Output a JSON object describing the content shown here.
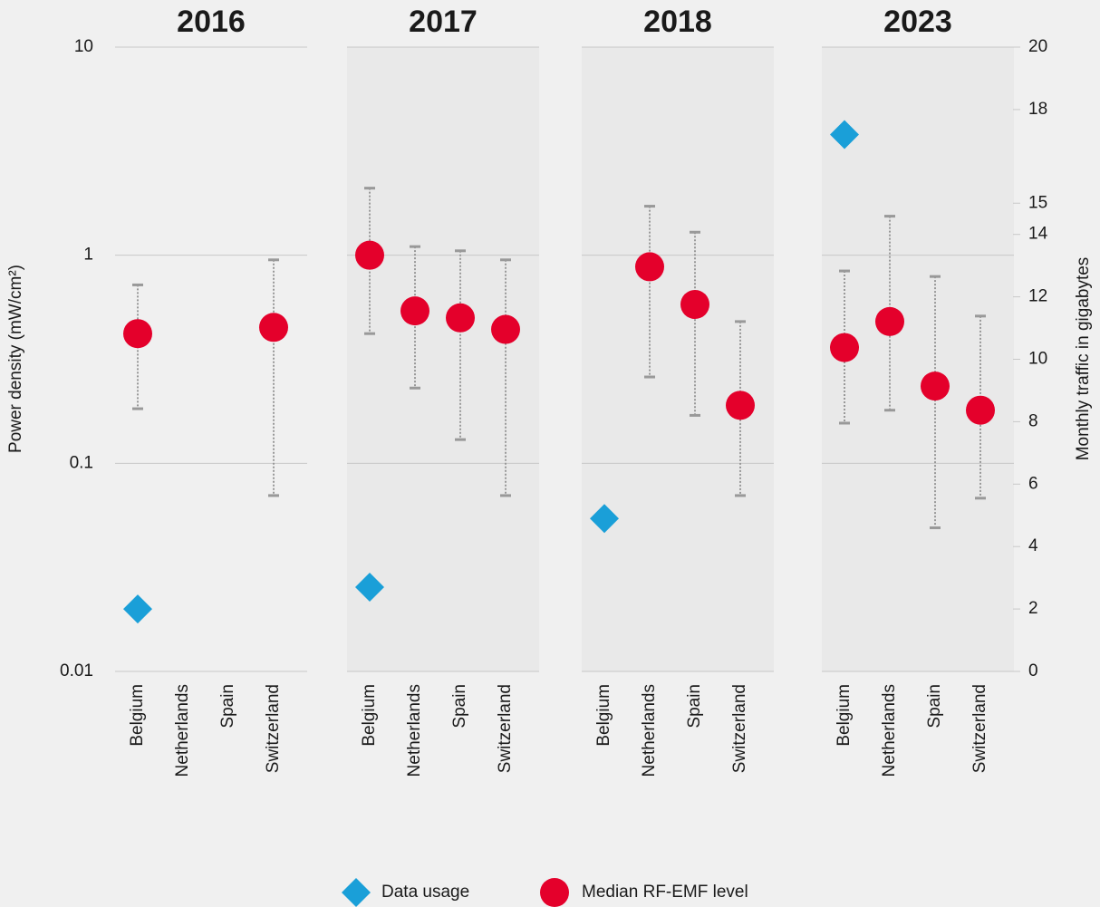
{
  "chart_data": {
    "type": "scatter",
    "y_label": "Power density (mW/cm²)",
    "y2_label": "Monthly traffic in gigabytes",
    "log_scale": true,
    "ylim": [
      0.01,
      10
    ],
    "yticks": [
      0.01,
      0.1,
      1,
      10
    ],
    "y2lim": [
      0,
      20
    ],
    "y2ticks": [
      0,
      2,
      4,
      6,
      8,
      10,
      12,
      14,
      15,
      18,
      20
    ],
    "grid": true,
    "legend": "bottom",
    "series": [
      {
        "name": "Data usage",
        "color": "#1a9fd8",
        "axis": "y2"
      },
      {
        "name": "Median RF-EMF level",
        "color": "#e4002b"
      }
    ],
    "panels": [
      {
        "title": "2016",
        "categories": [
          "Belgium",
          "Netherlands",
          "Spain",
          "Switzerland"
        ],
        "median": [
          0.42,
          null,
          null,
          0.45
        ],
        "low": [
          0.183,
          null,
          null,
          0.07
        ],
        "high": [
          0.72,
          null,
          null,
          0.95
        ],
        "usage": [
          2.0,
          null,
          null,
          null
        ]
      },
      {
        "title": "2017",
        "categories": [
          "Belgium",
          "Netherlands",
          "Spain",
          "Switzerland"
        ],
        "median": [
          1.0,
          0.54,
          0.5,
          0.44
        ],
        "low": [
          0.42,
          0.23,
          0.13,
          0.07
        ],
        "high": [
          2.1,
          1.1,
          1.05,
          0.95
        ],
        "usage": [
          2.7,
          null,
          null,
          null
        ]
      },
      {
        "title": "2018",
        "categories": [
          "Belgium",
          "Netherlands",
          "Spain",
          "Switzerland"
        ],
        "median": [
          null,
          0.88,
          0.58,
          0.19
        ],
        "low": [
          null,
          0.26,
          0.17,
          0.07
        ],
        "high": [
          null,
          1.72,
          1.29,
          0.48
        ],
        "usage": [
          4.9,
          null,
          null,
          null
        ]
      },
      {
        "title": "2023",
        "categories": [
          "Belgium",
          "Netherlands",
          "Spain",
          "Switzerland"
        ],
        "median": [
          0.36,
          0.48,
          0.235,
          0.18
        ],
        "low": [
          0.156,
          0.18,
          0.049,
          0.068
        ],
        "high": [
          0.84,
          1.54,
          0.79,
          0.51
        ],
        "usage": [
          17.2,
          null,
          null,
          null
        ]
      }
    ]
  }
}
